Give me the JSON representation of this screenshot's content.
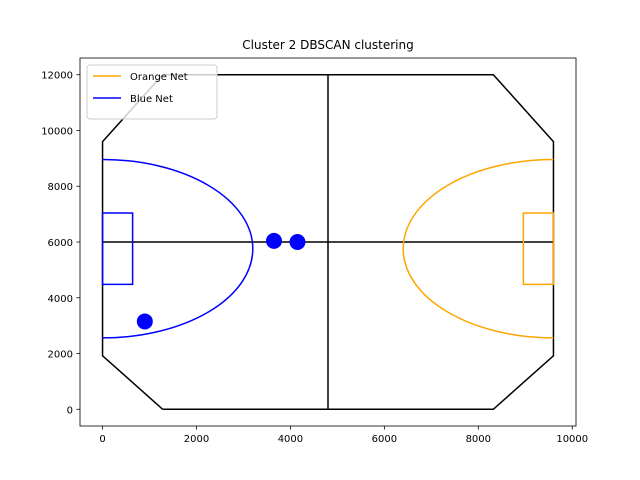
{
  "chart_data": {
    "type": "scatter",
    "title": "Cluster 2 DBSCAN clustering",
    "xlabel": "",
    "ylabel": "",
    "xlim": [
      -480,
      10080
    ],
    "ylim": [
      -600,
      12600
    ],
    "xticks": [
      0,
      2000,
      4000,
      6000,
      8000,
      10000
    ],
    "yticks": [
      0,
      2000,
      4000,
      6000,
      8000,
      10000,
      12000
    ],
    "grid": false,
    "legend": {
      "placement": "top-left",
      "entries": [
        {
          "label": "Orange Net",
          "color": "#FFA500"
        },
        {
          "label": "Blue Net",
          "color": "#0000FF"
        }
      ]
    },
    "field": {
      "color": "#000000",
      "outline": [
        [
          1280,
          0
        ],
        [
          8320,
          0
        ],
        [
          9600,
          1920
        ],
        [
          9600,
          9600
        ],
        [
          8320,
          12000
        ],
        [
          1280,
          12000
        ],
        [
          0,
          9600
        ],
        [
          0,
          1920
        ],
        [
          1280,
          0
        ]
      ],
      "center_x": 4800,
      "center_y": 6000,
      "x_range": [
        0,
        9600
      ],
      "y_range": [
        0,
        12000
      ]
    },
    "nets": [
      {
        "name": "Blue Net",
        "color": "#0000FF",
        "box": {
          "x0": 0,
          "x1": 640,
          "y0": 4480,
          "y1": 7040
        },
        "arc": {
          "x_vertex": 3200,
          "y_bottom": 2560,
          "y_top": 8960,
          "x_base": 0
        }
      },
      {
        "name": "Orange Net",
        "color": "#FFA500",
        "box": {
          "x0": 8960,
          "x1": 9600,
          "y0": 4480,
          "y1": 7040
        },
        "arc": {
          "x_vertex": 6400,
          "y_bottom": 2560,
          "y_top": 8960,
          "x_base": 9600
        }
      }
    ],
    "points": [
      {
        "x": 900,
        "y": 3150
      },
      {
        "x": 3650,
        "y": 6040
      },
      {
        "x": 4150,
        "y": 6000
      }
    ],
    "point_color": "#0000FF"
  }
}
